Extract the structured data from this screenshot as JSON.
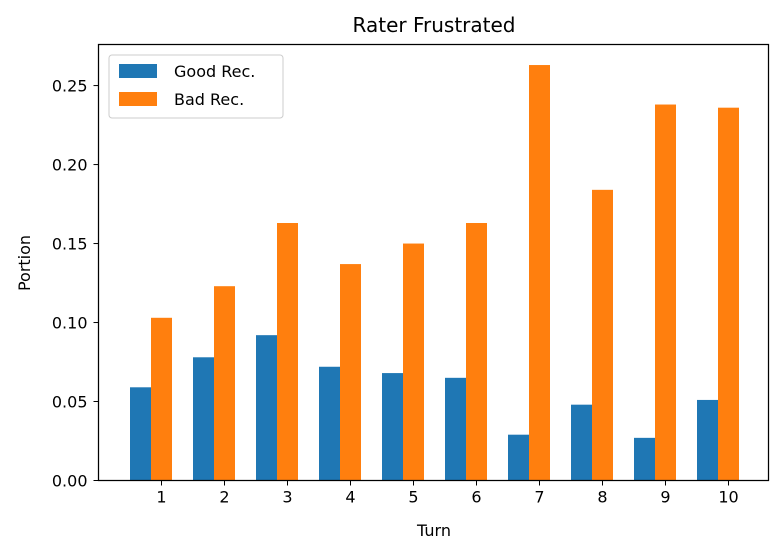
{
  "chart_data": {
    "type": "bar",
    "title": "Rater Frustrated",
    "xlabel": "Turn",
    "ylabel": "Portion",
    "categories": [
      "1",
      "2",
      "3",
      "4",
      "5",
      "6",
      "7",
      "8",
      "9",
      "10"
    ],
    "series": [
      {
        "name": "Good Rec.",
        "color": "#1f77b4",
        "values": [
          0.059,
          0.078,
          0.092,
          0.072,
          0.068,
          0.065,
          0.029,
          0.048,
          0.027,
          0.051
        ]
      },
      {
        "name": "Bad Rec.",
        "color": "#ff7f0e",
        "values": [
          0.103,
          0.123,
          0.163,
          0.137,
          0.15,
          0.163,
          0.263,
          0.184,
          0.238,
          0.236
        ]
      }
    ],
    "ylim": [
      0,
      0.276
    ],
    "yticks": [
      0.0,
      0.05,
      0.1,
      0.15,
      0.2,
      0.25
    ],
    "ytick_labels": [
      "0.00",
      "0.05",
      "0.10",
      "0.15",
      "0.20",
      "0.25"
    ],
    "grid": false,
    "legend_position": "top-left"
  }
}
